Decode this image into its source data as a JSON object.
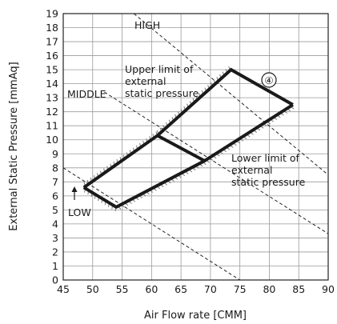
{
  "chart_data": {
    "type": "line",
    "title": "",
    "xlabel": "Air Flow rate [CMM]",
    "ylabel": "External Static Pressure [mmAq]",
    "xlim": [
      45,
      90
    ],
    "ylim": [
      0,
      19
    ],
    "xticks": [
      45,
      50,
      55,
      60,
      65,
      70,
      75,
      80,
      85,
      90
    ],
    "yticks": [
      0,
      1,
      2,
      3,
      4,
      5,
      6,
      7,
      8,
      9,
      10,
      11,
      12,
      13,
      14,
      15,
      16,
      17,
      18,
      19
    ],
    "grid": true,
    "fan_curves": [
      {
        "name": "HIGH",
        "points": [
          [
            57,
            19
          ],
          [
            90,
            7.5
          ]
        ]
      },
      {
        "name": "MIDDLE",
        "points": [
          [
            52,
            13.4
          ],
          [
            90,
            3.3
          ]
        ]
      },
      {
        "name": "LOW",
        "points": [
          [
            45,
            8
          ],
          [
            75,
            0
          ]
        ]
      }
    ],
    "upper_limit": {
      "label": "Upper limit of external static pressure",
      "points": [
        [
          48.5,
          6.6
        ],
        [
          61,
          10.3
        ],
        [
          73.5,
          15
        ],
        [
          84,
          12.5
        ]
      ]
    },
    "lower_limit": {
      "label": "Lower limit of external static pressure",
      "points": [
        [
          48.5,
          6.6
        ],
        [
          54,
          5.2
        ],
        [
          69,
          8.5
        ],
        [
          84,
          12.5
        ]
      ]
    },
    "cross_line": {
      "points": [
        [
          61,
          10.3
        ],
        [
          69,
          8.5
        ]
      ]
    },
    "annotations": {
      "high": "HIGH",
      "middle": "MIDDLE",
      "low": "LOW",
      "marker": "④",
      "upper_lines": [
        "Upper limit of",
        "external",
        "static pressure"
      ],
      "lower_lines": [
        "Lower limit of",
        "external",
        "static pressure"
      ]
    }
  }
}
